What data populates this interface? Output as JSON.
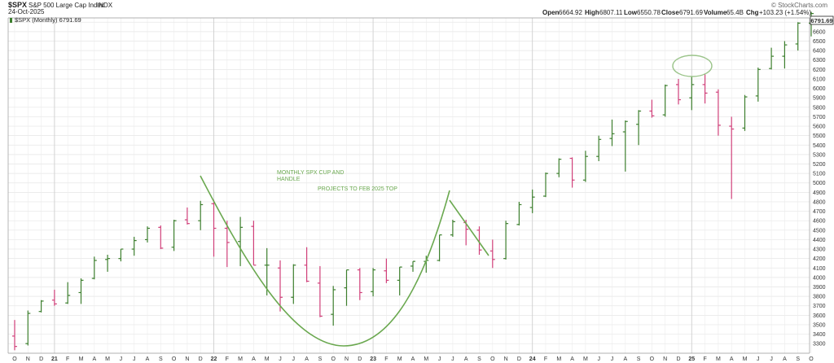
{
  "header": {
    "symbol": "$SPX",
    "name": "S&P 500 Large Cap Index",
    "exchange": "INDX",
    "date": "24-Oct-2025",
    "open_label": "Open",
    "open_value": "6664.92",
    "high_label": "High",
    "high_value": "6807.11",
    "low_label": "Low",
    "low_value": "6550.78",
    "close_label": "Close",
    "close_value": "6791.69",
    "volume_label": "Volume",
    "volume_value": "65.4B",
    "chg_label": "Chg",
    "chg_value": "+103.23 (+1.54%)",
    "watermark": "© StockCharts.com",
    "legend": "$SPX (Monthly) 6791.69",
    "last_price": "6791.69"
  },
  "annotations": {
    "line1": "MONTHLY SPX CUP AND",
    "line2": "HANDLE",
    "line3": "PROJECTS TO FEB 2025 TOP"
  },
  "colors": {
    "up": "#3d7f2e",
    "down": "#d0407a",
    "pattern": "#6aa84f",
    "grid": "#e4e4e4",
    "circle": "#9bc48a"
  },
  "chart_data": {
    "type": "ohlc",
    "title": "$SPX S&P 500 Large Cap Index",
    "legend": "$SPX (Monthly) 6791.69",
    "y_axis_position": "right",
    "ylim": [
      3200,
      6900
    ],
    "yticks": [
      3300,
      3400,
      3500,
      3600,
      3700,
      3800,
      3900,
      4000,
      4100,
      4200,
      4300,
      4400,
      4500,
      4600,
      4700,
      4800,
      4900,
      5000,
      5100,
      5200,
      5300,
      5400,
      5500,
      5600,
      5700,
      5800,
      5900,
      6000,
      6100,
      6200,
      6300,
      6400,
      6500,
      6600,
      6700,
      6800
    ],
    "x_tick_labels": [
      "O",
      "N",
      "D",
      "21",
      "F",
      "M",
      "A",
      "M",
      "J",
      "J",
      "A",
      "S",
      "O",
      "N",
      "D",
      "22",
      "F",
      "M",
      "A",
      "M",
      "J",
      "J",
      "A",
      "S",
      "O",
      "N",
      "D",
      "23",
      "F",
      "M",
      "A",
      "M",
      "J",
      "J",
      "A",
      "S",
      "O",
      "N",
      "D",
      "24",
      "F",
      "M",
      "A",
      "M",
      "J",
      "J",
      "A",
      "S",
      "O",
      "N",
      "D",
      "25",
      "F",
      "M",
      "A",
      "M",
      "J",
      "J",
      "A",
      "S",
      "O"
    ],
    "bars": [
      {
        "o": 3380,
        "h": 3550,
        "l": 3230,
        "c": 3270
      },
      {
        "o": 3300,
        "h": 3650,
        "l": 3280,
        "c": 3620
      },
      {
        "o": 3640,
        "h": 3760,
        "l": 3630,
        "c": 3750
      },
      {
        "o": 3760,
        "h": 3870,
        "l": 3700,
        "c": 3720
      },
      {
        "o": 3730,
        "h": 3950,
        "l": 3720,
        "c": 3810
      },
      {
        "o": 3840,
        "h": 3990,
        "l": 3720,
        "c": 3970
      },
      {
        "o": 3990,
        "h": 4220,
        "l": 3980,
        "c": 4180
      },
      {
        "o": 4190,
        "h": 4240,
        "l": 4060,
        "c": 4200
      },
      {
        "o": 4200,
        "h": 4300,
        "l": 4170,
        "c": 4300
      },
      {
        "o": 4300,
        "h": 4430,
        "l": 4230,
        "c": 4390
      },
      {
        "o": 4400,
        "h": 4540,
        "l": 4370,
        "c": 4520
      },
      {
        "o": 4530,
        "h": 4550,
        "l": 4300,
        "c": 4310
      },
      {
        "o": 4320,
        "h": 4610,
        "l": 4280,
        "c": 4600
      },
      {
        "o": 4610,
        "h": 4740,
        "l": 4560,
        "c": 4570
      },
      {
        "o": 4600,
        "h": 4810,
        "l": 4500,
        "c": 4770
      },
      {
        "o": 4780,
        "h": 4820,
        "l": 4220,
        "c": 4520
      },
      {
        "o": 4520,
        "h": 4600,
        "l": 4110,
        "c": 4370
      },
      {
        "o": 4380,
        "h": 4640,
        "l": 4120,
        "c": 4530
      },
      {
        "o": 4540,
        "h": 4600,
        "l": 4130,
        "c": 4130
      },
      {
        "o": 4130,
        "h": 4310,
        "l": 3810,
        "c": 4130
      },
      {
        "o": 4100,
        "h": 4180,
        "l": 3640,
        "c": 3790
      },
      {
        "o": 3790,
        "h": 4140,
        "l": 3720,
        "c": 4130
      },
      {
        "o": 4130,
        "h": 4320,
        "l": 3950,
        "c": 3960
      },
      {
        "o": 3940,
        "h": 4120,
        "l": 3580,
        "c": 3590
      },
      {
        "o": 3610,
        "h": 3910,
        "l": 3490,
        "c": 3870
      },
      {
        "o": 3890,
        "h": 4080,
        "l": 3700,
        "c": 4080
      },
      {
        "o": 4080,
        "h": 4100,
        "l": 3760,
        "c": 3840
      },
      {
        "o": 3850,
        "h": 4100,
        "l": 3800,
        "c": 4080
      },
      {
        "o": 4070,
        "h": 4200,
        "l": 3940,
        "c": 3970
      },
      {
        "o": 3970,
        "h": 4110,
        "l": 3810,
        "c": 4110
      },
      {
        "o": 4120,
        "h": 4170,
        "l": 4060,
        "c": 4170
      },
      {
        "o": 4170,
        "h": 4230,
        "l": 4050,
        "c": 4180
      },
      {
        "o": 4180,
        "h": 4450,
        "l": 4170,
        "c": 4450
      },
      {
        "o": 4450,
        "h": 4610,
        "l": 4430,
        "c": 4590
      },
      {
        "o": 4580,
        "h": 4610,
        "l": 4340,
        "c": 4510
      },
      {
        "o": 4500,
        "h": 4540,
        "l": 4240,
        "c": 4290
      },
      {
        "o": 4280,
        "h": 4400,
        "l": 4100,
        "c": 4190
      },
      {
        "o": 4200,
        "h": 4600,
        "l": 4190,
        "c": 4570
      },
      {
        "o": 4560,
        "h": 4800,
        "l": 4550,
        "c": 4770
      },
      {
        "o": 4740,
        "h": 4930,
        "l": 4680,
        "c": 4850
      },
      {
        "o": 4860,
        "h": 5110,
        "l": 4850,
        "c": 5100
      },
      {
        "o": 5100,
        "h": 5260,
        "l": 5060,
        "c": 5250
      },
      {
        "o": 5260,
        "h": 5270,
        "l": 4950,
        "c": 5030
      },
      {
        "o": 5030,
        "h": 5340,
        "l": 5010,
        "c": 5280
      },
      {
        "o": 5280,
        "h": 5500,
        "l": 5230,
        "c": 5460
      },
      {
        "o": 5470,
        "h": 5670,
        "l": 5390,
        "c": 5520
      },
      {
        "o": 5540,
        "h": 5660,
        "l": 5120,
        "c": 5650
      },
      {
        "o": 5620,
        "h": 5770,
        "l": 5400,
        "c": 5760
      },
      {
        "o": 5760,
        "h": 5880,
        "l": 5690,
        "c": 5710
      },
      {
        "o": 5720,
        "h": 6040,
        "l": 5700,
        "c": 6030
      },
      {
        "o": 6040,
        "h": 6100,
        "l": 5830,
        "c": 5880
      },
      {
        "o": 5900,
        "h": 6130,
        "l": 5770,
        "c": 6040
      },
      {
        "o": 6040,
        "h": 6150,
        "l": 5840,
        "c": 5950
      },
      {
        "o": 5960,
        "h": 5990,
        "l": 5500,
        "c": 5610
      },
      {
        "o": 5600,
        "h": 5700,
        "l": 4830,
        "c": 5570
      },
      {
        "o": 5580,
        "h": 5930,
        "l": 5550,
        "c": 5910
      },
      {
        "o": 5920,
        "h": 6220,
        "l": 5860,
        "c": 6200
      },
      {
        "o": 6210,
        "h": 6430,
        "l": 6200,
        "c": 6340
      },
      {
        "o": 6340,
        "h": 6500,
        "l": 6210,
        "c": 6460
      },
      {
        "o": 6470,
        "h": 6700,
        "l": 6400,
        "c": 6690
      },
      {
        "o": 6690,
        "h": 6810,
        "l": 6550,
        "c": 6792
      }
    ]
  }
}
